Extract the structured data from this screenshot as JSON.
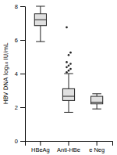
{
  "chart_data": {
    "type": "box",
    "ylabel": "HBV DNA log₁₀ IU/mL",
    "categories": [
      "HBeAg",
      "Anti-HBe",
      "e Neg"
    ],
    "boxes": [
      {
        "whisker_low": 5.9,
        "q1": 6.85,
        "median": 7.2,
        "q3": 7.55,
        "whisker_high": 8.0
      },
      {
        "whisker_low": 1.7,
        "q1": 2.4,
        "median": 2.65,
        "q3": 3.1,
        "whisker_high": 4.0,
        "outliers": [
          4.08,
          4.18,
          4.28,
          4.38,
          4.48,
          4.58,
          4.68,
          5.1,
          5.25,
          6.75
        ]
      },
      {
        "whisker_low": 1.9,
        "q1": 2.2,
        "median": 2.3,
        "q3": 2.65,
        "whisker_high": 2.8
      }
    ],
    "color": "#e0e0e0",
    "ylim": [
      0,
      8
    ],
    "yticks": [
      0,
      2,
      4,
      6,
      8
    ]
  }
}
